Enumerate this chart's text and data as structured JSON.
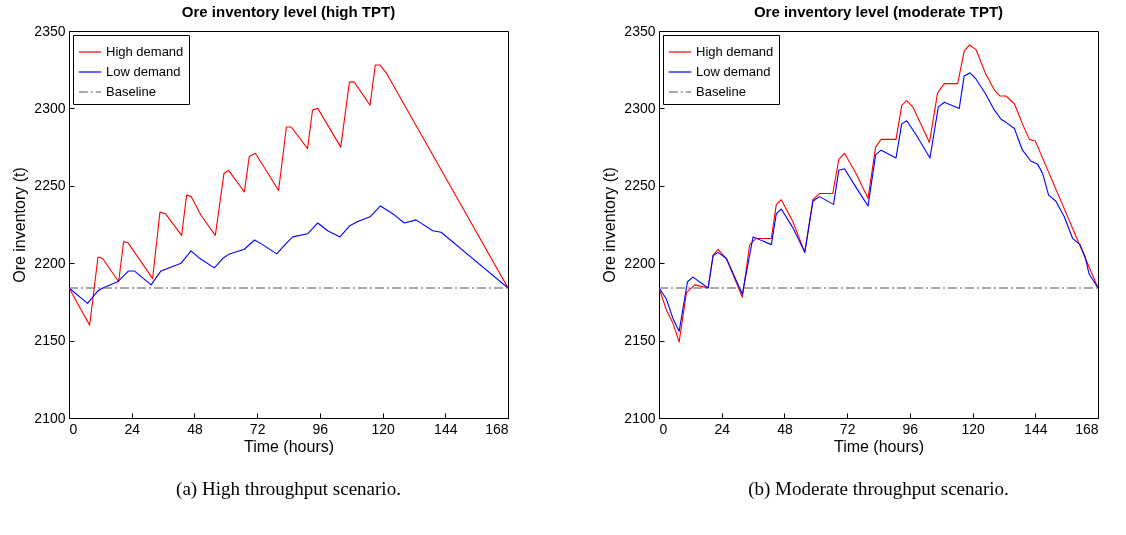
{
  "chart_data": [
    {
      "type": "line",
      "title": "Ore inventory level (high TPT)",
      "xlabel": "Time (hours)",
      "ylabel": "Ore inventory (t)",
      "xlim": [
        0,
        168
      ],
      "xticks": [
        0,
        24,
        48,
        72,
        96,
        120,
        144,
        168
      ],
      "ylim": [
        2100,
        2350
      ],
      "yticks": [
        2100,
        2150,
        2200,
        2250,
        2300,
        2350
      ],
      "grid": false,
      "legend": "top left",
      "annotations": [
        "(a) High throughput scenario."
      ],
      "series": [
        {
          "name": "High demand",
          "color": "#ff0000",
          "line_style": "solid",
          "x": [
            0,
            7.9,
            11.1,
            12.9,
            19,
            20.9,
            22.7,
            32,
            34.8,
            36.9,
            43.1,
            45,
            46.8,
            50.5,
            56,
            59.3,
            61.1,
            67.1,
            69,
            71.3,
            75.4,
            80.2,
            83.2,
            85,
            91.3,
            93.2,
            95.2,
            104,
            107.3,
            109.2,
            115.2,
            117.2,
            119,
            121.4,
            168
          ],
          "values": [
            2184,
            2160,
            2204,
            2203,
            2188,
            2214,
            2213,
            2190,
            2233,
            2232,
            2218,
            2244,
            2243,
            2231,
            2218,
            2258,
            2260,
            2246,
            2269,
            2271,
            2260,
            2247,
            2288,
            2288,
            2274,
            2299,
            2300,
            2275,
            2317,
            2317,
            2302,
            2328,
            2328,
            2323,
            2184
          ]
        },
        {
          "name": "Low demand",
          "color": "#0000ff",
          "line_style": "solid",
          "x": [
            0,
            7.1,
            11,
            12.9,
            18.6,
            22.8,
            25,
            31.4,
            35.2,
            42.9,
            46.7,
            50.1,
            55.6,
            58.8,
            61.4,
            67.1,
            71,
            74.1,
            79.5,
            83.2,
            85.6,
            91.3,
            95.2,
            99,
            103.7,
            107.3,
            110.5,
            115.2,
            119.2,
            123.9,
            128.3,
            132.8,
            139.2,
            142.4,
            168
          ],
          "values": [
            2184,
            2174,
            2182,
            2184,
            2188,
            2195,
            2195,
            2186,
            2195,
            2200,
            2208,
            2203,
            2197,
            2203,
            2206,
            2209,
            2215,
            2212,
            2206,
            2213,
            2217,
            2219,
            2226,
            2221,
            2217,
            2224,
            2227,
            2230,
            2237,
            2232,
            2226,
            2228,
            2221,
            2220,
            2184
          ]
        },
        {
          "name": "Baseline",
          "color": "#555555",
          "line_style": "dashed",
          "x": [
            0,
            168
          ],
          "values": [
            2184,
            2184
          ]
        }
      ]
    },
    {
      "type": "line",
      "title": "Ore inventory level (moderate TPT)",
      "xlabel": "Time (hours)",
      "ylabel": "Ore inventory (t)",
      "xlim": [
        0,
        168
      ],
      "xticks": [
        0,
        24,
        48,
        72,
        96,
        120,
        144,
        168
      ],
      "ylim": [
        2100,
        2350
      ],
      "yticks": [
        2100,
        2150,
        2200,
        2250,
        2300,
        2350
      ],
      "grid": false,
      "legend": "top left",
      "annotations": [
        "(b) Moderate throughput scenario."
      ],
      "series": [
        {
          "name": "High demand",
          "color": "#ff0000",
          "line_style": "solid",
          "x": [
            0,
            2.8,
            5.4,
            7.7,
            10.5,
            13.7,
            18.8,
            20.7,
            22.6,
            25.8,
            31.9,
            34.7,
            37.2,
            43,
            44.9,
            46.8,
            51.2,
            55.8,
            58.9,
            61.4,
            66.5,
            68.8,
            71,
            75.4,
            80,
            82.9,
            85,
            90.7,
            92.9,
            94.8,
            97.1,
            103.5,
            106.6,
            109.2,
            114.3,
            116.8,
            118.8,
            121.3,
            125.1,
            128.3,
            130.5,
            132.8,
            136,
            139.1,
            141.7,
            144,
            168
          ],
          "values": [
            2184,
            2170,
            2161,
            2149,
            2181,
            2186,
            2184,
            2205,
            2209,
            2203,
            2178,
            2212,
            2216,
            2216,
            2238,
            2241,
            2227,
            2207,
            2241,
            2245,
            2245,
            2267,
            2271,
            2258,
            2242,
            2275,
            2280,
            2280,
            2302,
            2305,
            2301,
            2278,
            2310,
            2316,
            2316,
            2337,
            2341,
            2338,
            2322,
            2312,
            2308,
            2308,
            2303,
            2290,
            2280,
            2279,
            2184
          ]
        },
        {
          "name": "Low demand",
          "color": "#0000ff",
          "line_style": "solid",
          "x": [
            0,
            2.8,
            5.4,
            7.7,
            10.9,
            13,
            18.8,
            20.7,
            22.6,
            25.8,
            31.9,
            36,
            43,
            44.9,
            46.8,
            51.2,
            55.8,
            58.9,
            61.4,
            66.8,
            68.8,
            71,
            75.4,
            80,
            82.9,
            85,
            90.7,
            92.9,
            94.8,
            98.4,
            103.7,
            106.9,
            109.2,
            114.9,
            116.8,
            119,
            121.3,
            125.1,
            128.3,
            130.9,
            132.8,
            136,
            139.1,
            142.3,
            144.9,
            146.8,
            149.1,
            151.9,
            155.1,
            158.3,
            161.1,
            163.1,
            164.6,
            168
          ],
          "values": [
            2184,
            2177,
            2164,
            2156,
            2188,
            2191,
            2184,
            2205,
            2207,
            2203,
            2180,
            2217,
            2212,
            2232,
            2235,
            2223,
            2207,
            2240,
            2243,
            2238,
            2260,
            2261,
            2249,
            2237,
            2270,
            2273,
            2268,
            2290,
            2292,
            2283,
            2268,
            2301,
            2304,
            2300,
            2321,
            2323,
            2319,
            2309,
            2299,
            2293,
            2291,
            2287,
            2273,
            2266,
            2264,
            2258,
            2244,
            2240,
            2230,
            2216,
            2212,
            2204,
            2193,
            2184
          ]
        },
        {
          "name": "Baseline",
          "color": "#555555",
          "line_style": "dashed",
          "x": [
            0,
            168
          ],
          "values": [
            2184,
            2184
          ]
        }
      ]
    }
  ]
}
